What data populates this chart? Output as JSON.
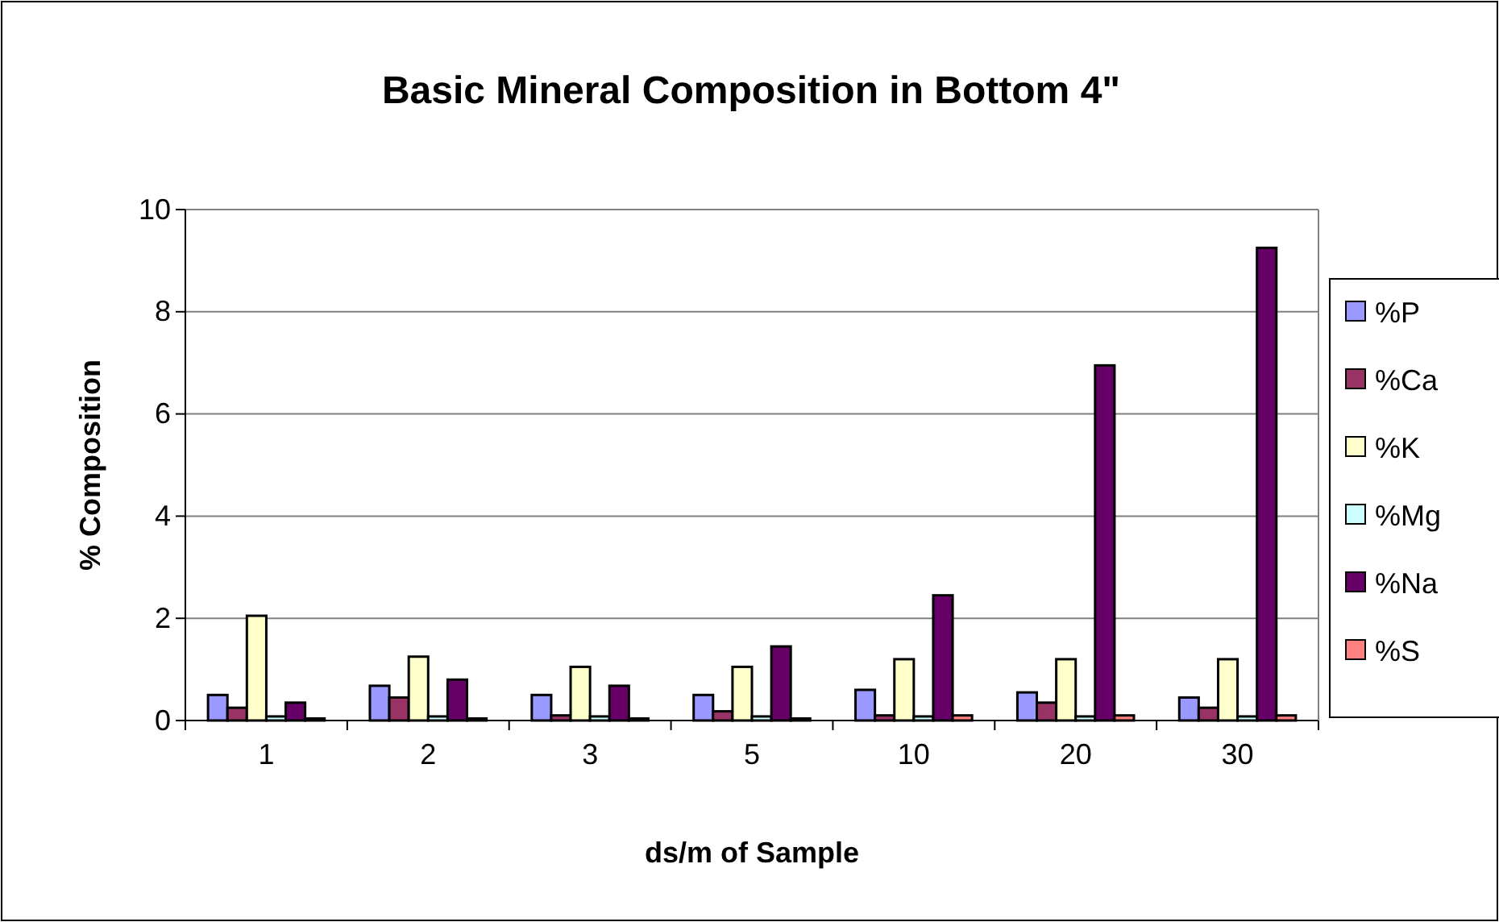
{
  "chart_data": {
    "type": "bar",
    "title": "Basic Mineral Composition in Bottom 4\"",
    "xlabel": "ds/m of Sample",
    "ylabel": "% Composition",
    "categories": [
      "1",
      "2",
      "3",
      "5",
      "10",
      "20",
      "30"
    ],
    "series": [
      {
        "name": "%P",
        "color": "#9999ff",
        "values": [
          0.5,
          0.68,
          0.5,
          0.5,
          0.6,
          0.55,
          0.45
        ]
      },
      {
        "name": "%Ca",
        "color": "#993366",
        "values": [
          0.25,
          0.45,
          0.1,
          0.18,
          0.1,
          0.35,
          0.25
        ]
      },
      {
        "name": "%K",
        "color": "#ffffcc",
        "values": [
          2.05,
          1.25,
          1.05,
          1.05,
          1.2,
          1.2,
          1.2
        ]
      },
      {
        "name": "%Mg",
        "color": "#ccffff",
        "values": [
          0.08,
          0.08,
          0.08,
          0.08,
          0.08,
          0.08,
          0.08
        ]
      },
      {
        "name": "%Na",
        "color": "#660066",
        "values": [
          0.35,
          0.8,
          0.68,
          1.45,
          2.45,
          6.95,
          9.25
        ]
      },
      {
        "name": "%S",
        "color": "#ff8080",
        "values": [
          0.04,
          0.04,
          0.04,
          0.04,
          0.1,
          0.1,
          0.1
        ]
      }
    ],
    "ylim": [
      0,
      10
    ],
    "yticks": [
      0,
      2,
      4,
      6,
      8,
      10
    ],
    "grid": "y",
    "legend": "right"
  }
}
